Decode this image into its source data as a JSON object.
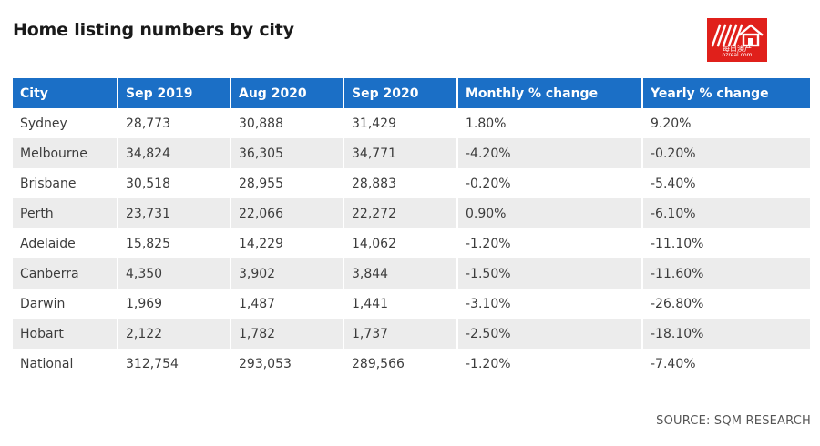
{
  "title": "Home listing numbers by city",
  "logo": {
    "cn_text": "每日澳产",
    "url_text": "ozreal.com",
    "brand_color": "#e0201b"
  },
  "table": {
    "header_color": "#1b6fc6",
    "stripe_color": "#ececec",
    "columns": [
      "City",
      "Sep 2019",
      "Aug 2020",
      "Sep 2020",
      "Monthly % change",
      "Yearly % change"
    ],
    "rows": [
      [
        "Sydney",
        "28,773",
        "30,888",
        "31,429",
        "1.80%",
        "9.20%"
      ],
      [
        "Melbourne",
        "34,824",
        "36,305",
        "34,771",
        "-4.20%",
        "-0.20%"
      ],
      [
        "Brisbane",
        "30,518",
        "28,955",
        "28,883",
        "-0.20%",
        "-5.40%"
      ],
      [
        "Perth",
        "23,731",
        "22,066",
        "22,272",
        "0.90%",
        "-6.10%"
      ],
      [
        "Adelaide",
        "15,825",
        "14,229",
        "14,062",
        "-1.20%",
        "-11.10%"
      ],
      [
        "Canberra",
        "4,350",
        "3,902",
        "3,844",
        "-1.50%",
        "-11.60%"
      ],
      [
        "Darwin",
        "1,969",
        "1,487",
        "1,441",
        "-3.10%",
        "-26.80%"
      ],
      [
        "Hobart",
        "2,122",
        "1,782",
        "1,737",
        "-2.50%",
        "-18.10%"
      ],
      [
        "National",
        "312,754",
        "293,053",
        "289,566",
        "-1.20%",
        "-7.40%"
      ]
    ]
  },
  "source": "SOURCE: SQM RESEARCH"
}
